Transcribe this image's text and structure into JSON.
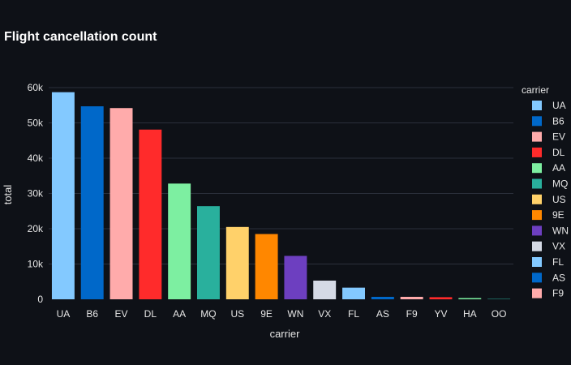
{
  "chart_data": {
    "type": "bar",
    "title": "Flight cancellation count",
    "xlabel": "carrier",
    "ylabel": "total",
    "ylim": [
      0,
      60000
    ],
    "y_ticks": [
      0,
      10000,
      20000,
      30000,
      40000,
      50000,
      60000
    ],
    "y_tick_labels": [
      "0",
      "10k",
      "20k",
      "30k",
      "40k",
      "50k",
      "60k"
    ],
    "grid": true,
    "legend_placement": "right",
    "legend_title": "carrier",
    "categories": [
      "UA",
      "B6",
      "EV",
      "DL",
      "AA",
      "MQ",
      "US",
      "9E",
      "WN",
      "VX",
      "FL",
      "AS",
      "F9",
      "YV",
      "HA",
      "OO"
    ],
    "values": [
      58700,
      54700,
      54200,
      48100,
      32800,
      26400,
      20500,
      18500,
      12300,
      5300,
      3300,
      700,
      700,
      600,
      350,
      30
    ],
    "colors": [
      "#83c9ff",
      "#0068c9",
      "#ffabab",
      "#ff2b2b",
      "#7defa1",
      "#29b09d",
      "#ffd16a",
      "#ff8700",
      "#6d3fc0",
      "#d5dae5",
      "#83c9ff",
      "#0068c9",
      "#ffabab",
      "#ff2b2b",
      "#7defa1",
      "#29b09d"
    ],
    "legend_entries": [
      "UA",
      "B6",
      "EV",
      "DL",
      "AA",
      "MQ",
      "US",
      "9E",
      "WN",
      "VX",
      "FL",
      "AS",
      "F9"
    ]
  },
  "colors": {
    "background": "#0e1117",
    "grid": "#2b303b",
    "text": "#e6e6e6"
  }
}
